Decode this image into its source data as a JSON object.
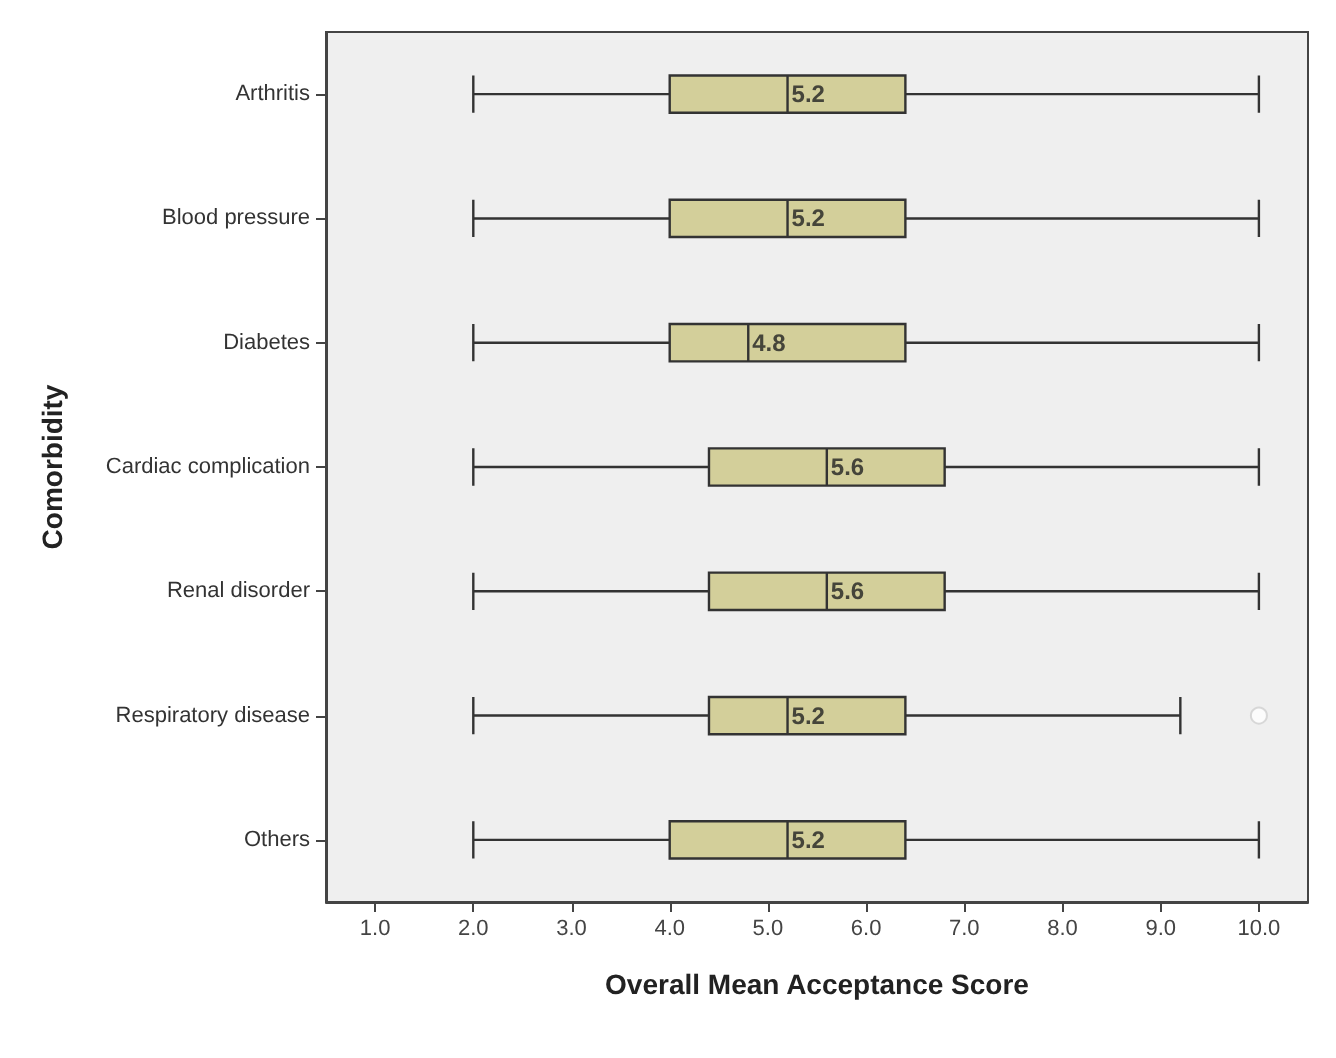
{
  "chart_data": {
    "type": "box",
    "orientation": "horizontal",
    "xlabel": "Overall Mean Acceptance Score",
    "ylabel": "Comorbidity",
    "categories": [
      "Arthritis",
      "Blood pressure",
      "Diabetes",
      "Cardiac complication",
      "Renal disorder",
      "Respiratory disease",
      "Others"
    ],
    "series": [
      {
        "color": "#d3cf9a",
        "boxes": [
          {
            "low": 2,
            "q1": 4,
            "median": 5.2,
            "q3": 6.4,
            "high": 10
          },
          {
            "low": 2,
            "q1": 4,
            "median": 5.2,
            "q3": 6.4,
            "high": 10
          },
          {
            "low": 2,
            "q1": 4,
            "median": 4.8,
            "q3": 6.4,
            "high": 10
          },
          {
            "low": 2,
            "q1": 4.4,
            "median": 5.6,
            "q3": 6.8,
            "high": 10
          },
          {
            "low": 2,
            "q1": 4.4,
            "median": 5.6,
            "q3": 6.8,
            "high": 10
          },
          {
            "low": 2,
            "q1": 4.4,
            "median": 5.2,
            "q3": 6.4,
            "high": 9.2,
            "outliers": [
              10
            ]
          },
          {
            "low": 2,
            "q1": 4,
            "median": 5.2,
            "q3": 6.4,
            "high": 10
          }
        ],
        "value_labels": [
          "5.2",
          "5.2",
          "4.8",
          "5.6",
          "5.6",
          "5.2",
          "5.2"
        ]
      }
    ],
    "xlim": [
      0.5,
      10.5
    ],
    "xticks": [
      {
        "value": 1,
        "label": "1.0"
      },
      {
        "value": 2,
        "label": "2.0"
      },
      {
        "value": 3,
        "label": "3.0"
      },
      {
        "value": 4,
        "label": "4.0"
      },
      {
        "value": 5,
        "label": "5.0"
      },
      {
        "value": 6,
        "label": "6.0"
      },
      {
        "value": 7,
        "label": "7.0"
      },
      {
        "value": 8,
        "label": "8.0"
      },
      {
        "value": 9,
        "label": "9.0"
      },
      {
        "value": 10,
        "label": "10.0"
      }
    ],
    "grid": false
  }
}
